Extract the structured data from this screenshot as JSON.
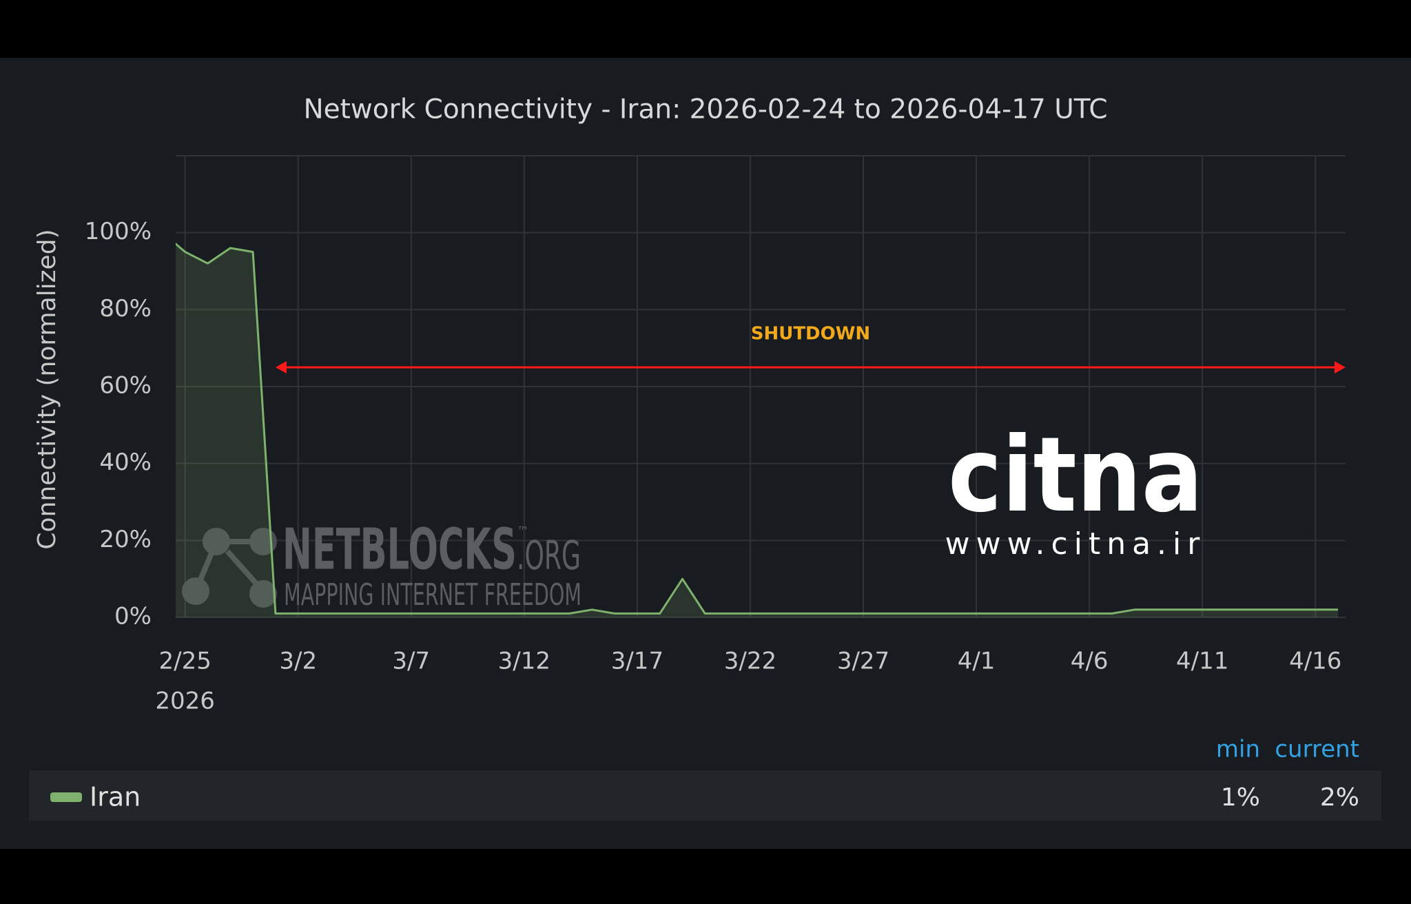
{
  "chart_data": {
    "type": "line",
    "title": "Network Connectivity - Iran: 2026-02-24 to 2026-04-17 UTC",
    "y_label": "Connectivity (normalized)",
    "x_year_label": "2026",
    "x": [
      "2026-02-24",
      "2026-02-25",
      "2026-02-26",
      "2026-02-27",
      "2026-02-28",
      "2026-03-01",
      "2026-03-02",
      "2026-03-03",
      "2026-03-04",
      "2026-03-05",
      "2026-03-06",
      "2026-03-07",
      "2026-03-08",
      "2026-03-09",
      "2026-03-10",
      "2026-03-11",
      "2026-03-12",
      "2026-03-13",
      "2026-03-14",
      "2026-03-15",
      "2026-03-16",
      "2026-03-17",
      "2026-03-18",
      "2026-03-19",
      "2026-03-20",
      "2026-03-21",
      "2026-03-22",
      "2026-03-23",
      "2026-03-24",
      "2026-03-25",
      "2026-03-26",
      "2026-03-27",
      "2026-03-28",
      "2026-03-29",
      "2026-03-30",
      "2026-03-31",
      "2026-04-01",
      "2026-04-02",
      "2026-04-03",
      "2026-04-04",
      "2026-04-05",
      "2026-04-06",
      "2026-04-07",
      "2026-04-08",
      "2026-04-09",
      "2026-04-10",
      "2026-04-11",
      "2026-04-12",
      "2026-04-13",
      "2026-04-14",
      "2026-04-15",
      "2026-04-16",
      "2026-04-17"
    ],
    "series": [
      {
        "name": "Iran",
        "color": "#7eb26d",
        "values": [
          100,
          95,
          92,
          96,
          95,
          1,
          1,
          1,
          1,
          1,
          1,
          1,
          1,
          1,
          1,
          1,
          1,
          1,
          1,
          2,
          1,
          1,
          1,
          10,
          1,
          1,
          1,
          1,
          1,
          1,
          1,
          1,
          1,
          1,
          1,
          1,
          1,
          1,
          1,
          1,
          1,
          1,
          1,
          2,
          2,
          2,
          2,
          2,
          2,
          2,
          2,
          2,
          2
        ]
      }
    ],
    "xlim": [
      "2026-02-24T14:00",
      "2026-04-17T08:00"
    ],
    "xticks": [
      {
        "value": "2026-02-25",
        "label": "2/25"
      },
      {
        "value": "2026-03-02",
        "label": "3/2"
      },
      {
        "value": "2026-03-07",
        "label": "3/7"
      },
      {
        "value": "2026-03-12",
        "label": "3/12"
      },
      {
        "value": "2026-03-17",
        "label": "3/17"
      },
      {
        "value": "2026-03-22",
        "label": "3/22"
      },
      {
        "value": "2026-03-27",
        "label": "3/27"
      },
      {
        "value": "2026-04-01",
        "label": "4/1"
      },
      {
        "value": "2026-04-06",
        "label": "4/6"
      },
      {
        "value": "2026-04-11",
        "label": "4/11"
      },
      {
        "value": "2026-04-16",
        "label": "4/16"
      }
    ],
    "ylim": [
      0,
      120
    ],
    "yticks": [
      {
        "value": 0,
        "label": "0%"
      },
      {
        "value": 20,
        "label": "20%"
      },
      {
        "value": 40,
        "label": "40%"
      },
      {
        "value": 60,
        "label": "60%"
      },
      {
        "value": 80,
        "label": "80%"
      },
      {
        "value": 100,
        "label": "100%"
      }
    ],
    "grid": true,
    "annotation": {
      "text": "SHUTDOWN",
      "x_start": "2026-03-01",
      "x_end": "2026-04-17T08:00",
      "y": 65,
      "color": "#ff1a1a"
    },
    "watermarks": {
      "netblocks": "NETBLOCKS",
      "tm": "™",
      "org": ".ORG",
      "tagline": "MAPPING INTERNET FREEDOM",
      "citna": "citna",
      "citna_url": "www.citna.ir"
    },
    "legend_table": {
      "columns": [
        "min",
        "current"
      ],
      "values": [
        1,
        2
      ],
      "value_labels": [
        "1%",
        "2%"
      ]
    }
  }
}
